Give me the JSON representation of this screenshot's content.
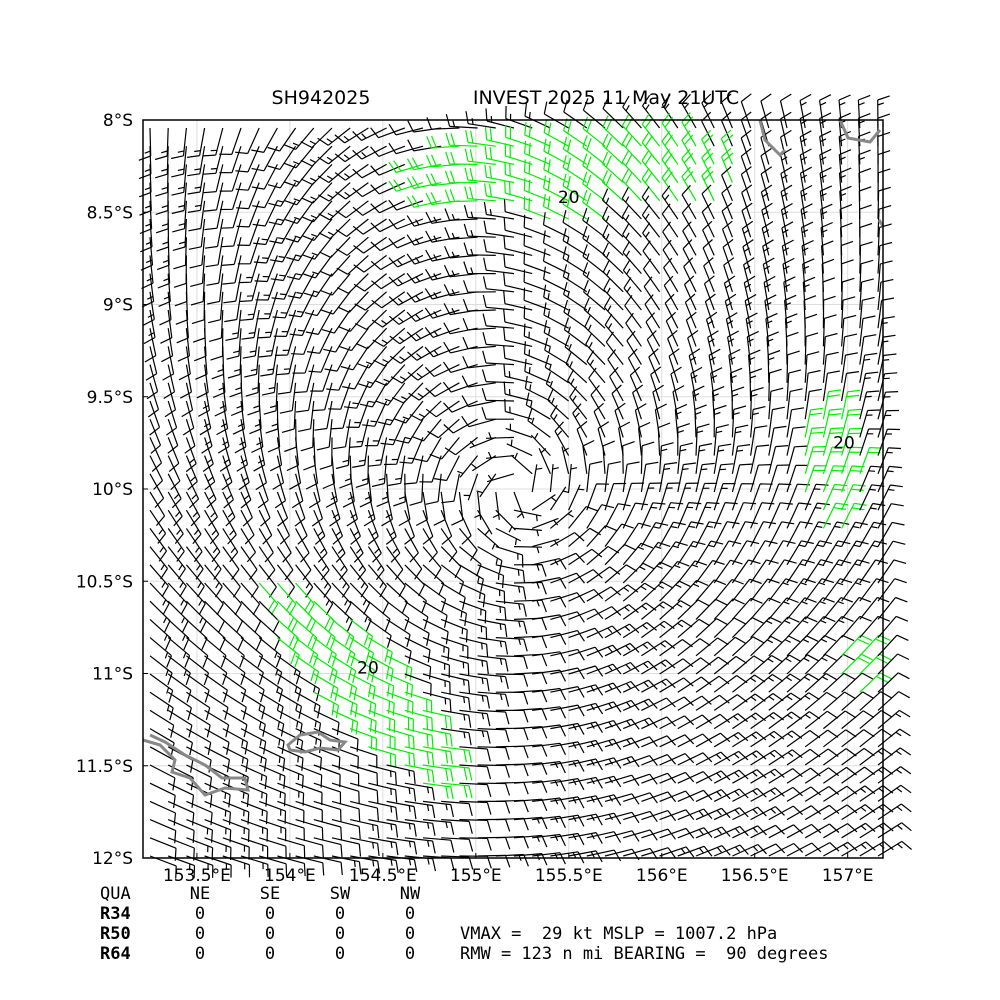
{
  "map": {
    "title_left": "SH942025",
    "title_right": "INVEST 2025 11 May 21UTC",
    "xlim": [
      153.21,
      157.19
    ],
    "ylim": [
      -12,
      -8
    ],
    "xticks": [
      {
        "value": 153.5,
        "label": "153.5°E"
      },
      {
        "value": 154,
        "label": "154°E"
      },
      {
        "value": 154.5,
        "label": "154.5°E"
      },
      {
        "value": 155,
        "label": "155°E"
      },
      {
        "value": 155.5,
        "label": "155.5°E"
      },
      {
        "value": 156,
        "label": "156°E"
      },
      {
        "value": 156.5,
        "label": "156.5°E"
      },
      {
        "value": 157,
        "label": "157°E"
      }
    ],
    "yticks": [
      {
        "value": -8,
        "label": "8°S"
      },
      {
        "value": -8.5,
        "label": "8.5°S"
      },
      {
        "value": -9,
        "label": "9°S"
      },
      {
        "value": -9.5,
        "label": "9.5°S"
      },
      {
        "value": -10,
        "label": "10°S"
      },
      {
        "value": -10.5,
        "label": "10.5°S"
      },
      {
        "value": -11,
        "label": "11°S"
      },
      {
        "value": -11.5,
        "label": "11.5°S"
      },
      {
        "value": -12,
        "label": "12°S"
      }
    ],
    "grid": true,
    "contour_labels": [
      {
        "text": "20",
        "lon": 155.5,
        "lat": -8.45
      },
      {
        "text": "20",
        "lon": 156.98,
        "lat": -9.78
      },
      {
        "text": "20",
        "lon": 154.42,
        "lat": -11.0
      }
    ]
  },
  "table": {
    "header": [
      "QUA",
      "NE",
      "SE",
      "SW",
      "NW"
    ],
    "rows": [
      [
        "R34",
        0,
        0,
        0,
        0
      ],
      [
        "R50",
        0,
        0,
        0,
        0
      ],
      [
        "R64",
        0,
        0,
        0,
        0
      ]
    ]
  },
  "stats": [
    "VMAX =  29 kt MSLP = 1007.2 hPa",
    "RMW = 123 n mi BEARING =  90 degrees"
  ]
}
